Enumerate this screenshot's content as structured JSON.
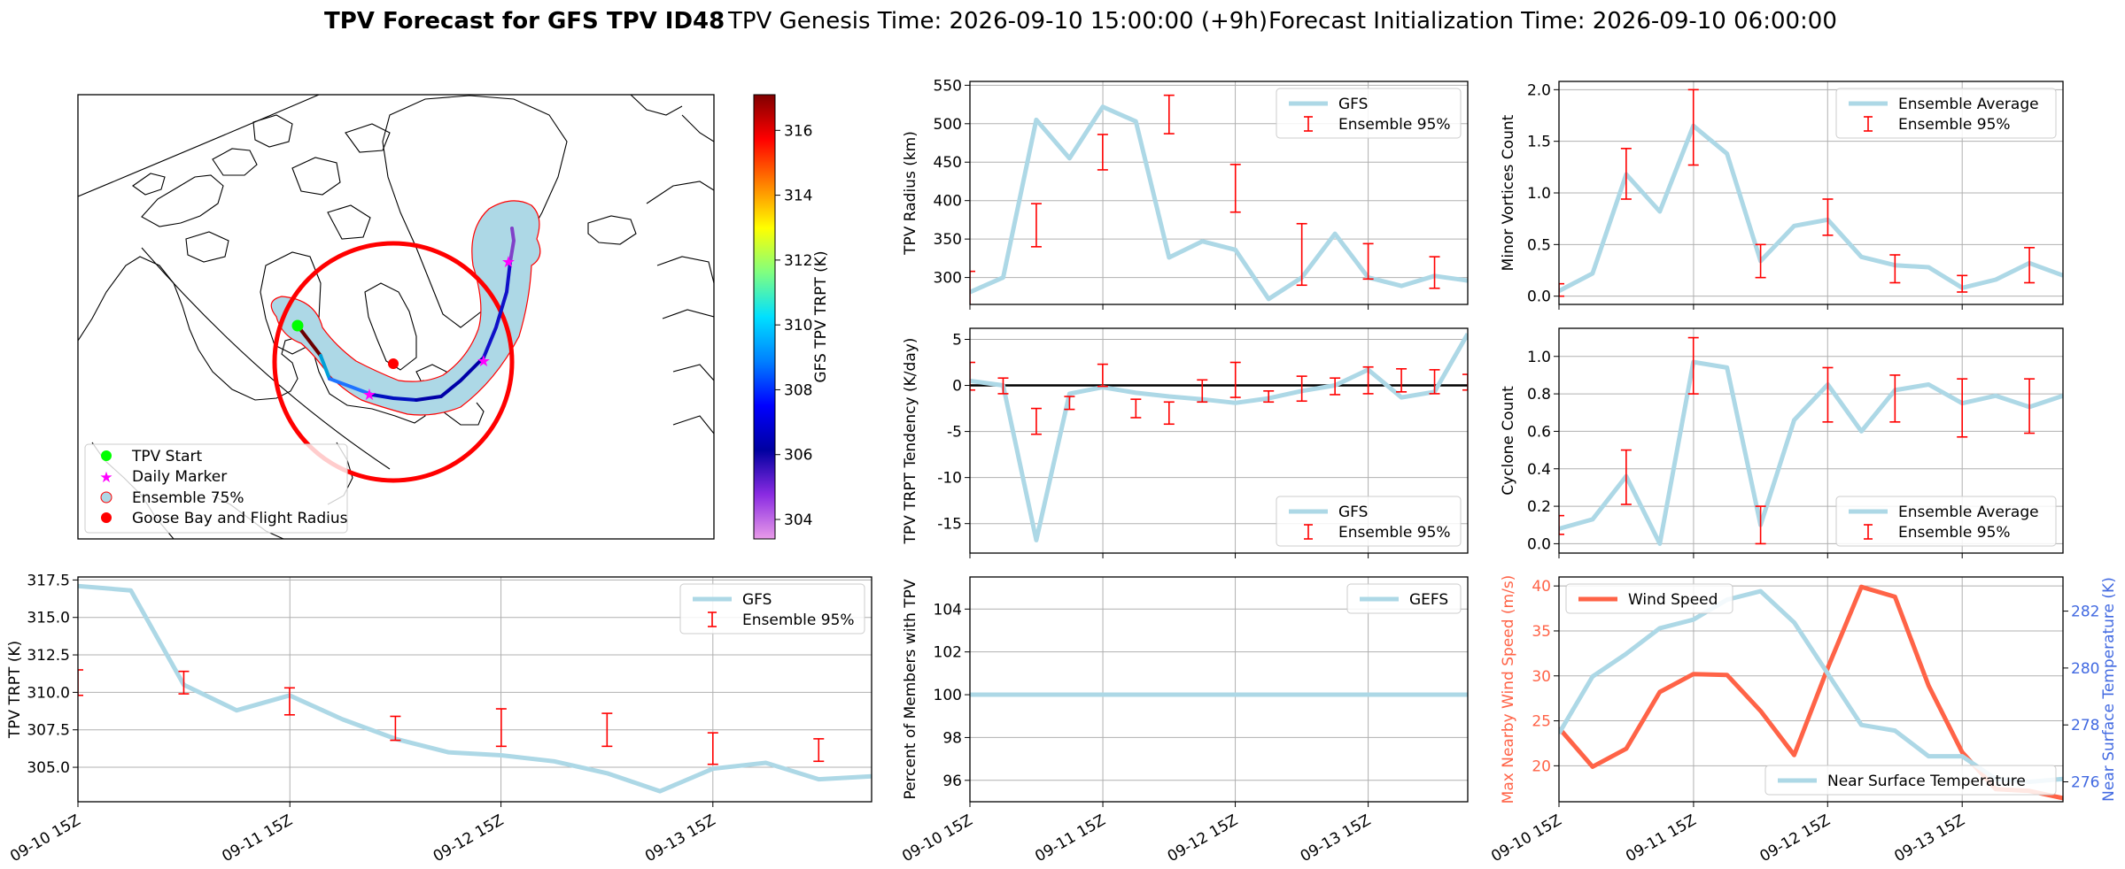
{
  "figure": {
    "title_main": "TPV Forecast for GFS TPV ID48",
    "title_genesis": "TPV Genesis Time: 2026-09-10 15:00:00 (+9h)",
    "title_init": "Forecast Initialization Time: 2026-09-10 06:00:00"
  },
  "colors": {
    "series_line": "#add8e6",
    "errorbar": "#ff0000",
    "wind_line": "#ff6347",
    "temp_axis": "#4169e1",
    "goose_circle": "#ff0000",
    "tpv_start": "#00ff00",
    "daily_marker": "#ff00ff"
  },
  "map": {
    "legend": [
      "TPV Start",
      "Daily Marker",
      "Ensemble 75%",
      "Goose Bay and Flight Radius"
    ],
    "colorbar": {
      "label": "GFS TPV TRPT (K)",
      "min": 303.4,
      "max": 317.1,
      "ticks": [
        304,
        306,
        308,
        310,
        312,
        314,
        316
      ]
    }
  },
  "chart_data": [
    {
      "id": "radius",
      "type": "line",
      "ylabel": "TPV Radius (km)",
      "ylim": [
        265,
        555
      ],
      "yticks": [
        300,
        350,
        400,
        450,
        500,
        550
      ],
      "legend": "top-right",
      "grid": true,
      "series": [
        {
          "name": "GFS",
          "values": [
            281,
            300,
            505,
            455,
            522,
            503,
            326,
            347,
            336,
            272,
            300,
            357,
            300,
            289,
            302,
            296
          ]
        },
        {
          "name": "Ensemble 95%",
          "kind": "errorbar",
          "x": [
            0,
            2,
            4,
            6,
            8,
            10,
            12,
            14
          ],
          "low": [
            260,
            340,
            440,
            487,
            385,
            290,
            298,
            286
          ],
          "high": [
            308,
            396,
            486,
            537,
            447,
            370,
            344,
            327
          ]
        }
      ]
    },
    {
      "id": "minor",
      "type": "line",
      "ylabel": "Minor Vortices Count",
      "ylim": [
        -0.08,
        2.08
      ],
      "yticks": [
        0.0,
        0.5,
        1.0,
        1.5,
        2.0
      ],
      "legend": "top-right",
      "grid": true,
      "series": [
        {
          "name": "Ensemble Average",
          "values": [
            0.05,
            0.22,
            1.18,
            0.82,
            1.65,
            1.38,
            0.34,
            0.68,
            0.74,
            0.38,
            0.3,
            0.28,
            0.08,
            0.16,
            0.32,
            0.2
          ]
        },
        {
          "name": "Ensemble 95%",
          "kind": "errorbar",
          "x": [
            0,
            2,
            4,
            6,
            8,
            10,
            12,
            14
          ],
          "low": [
            0.0,
            0.94,
            1.27,
            0.18,
            0.59,
            0.13,
            0.04,
            0.13
          ],
          "high": [
            0.12,
            1.43,
            2.0,
            0.5,
            0.94,
            0.4,
            0.2,
            0.47
          ]
        }
      ]
    },
    {
      "id": "tendency",
      "type": "line",
      "ylabel": "TPV TRPT Tendency (K/day)",
      "ylim": [
        -18.2,
        6.2
      ],
      "yticks": [
        5,
        0,
        -5,
        -10,
        -15
      ],
      "legend": "bottom-right",
      "grid": true,
      "series": [
        {
          "name": "GFS",
          "values": [
            0.5,
            0.0,
            -16.8,
            -0.9,
            -0.2,
            -0.8,
            -1.2,
            -1.5,
            -1.9,
            -1.4,
            -0.6,
            0.0,
            1.7,
            -1.3,
            -0.7,
            5.6
          ]
        },
        {
          "name": "Ensemble 95%",
          "kind": "errorbar",
          "x": [
            0,
            1,
            2,
            3,
            4,
            5,
            6,
            7,
            8,
            9,
            10,
            11,
            12,
            13,
            14,
            15
          ],
          "low": [
            -0.5,
            -0.9,
            -5.3,
            -2.6,
            -0.1,
            -3.5,
            -4.2,
            -1.8,
            -1.3,
            -1.8,
            -1.7,
            -1.0,
            -0.9,
            -0.7,
            -0.9,
            -0.5
          ],
          "high": [
            2.5,
            0.8,
            -2.5,
            -1.2,
            2.3,
            -1.5,
            -1.8,
            0.6,
            2.5,
            -0.6,
            1.0,
            0.8,
            2.0,
            1.8,
            1.7,
            1.2
          ]
        }
      ]
    },
    {
      "id": "cyclone",
      "type": "line",
      "ylabel": "Cyclone Count",
      "ylim": [
        -0.05,
        1.15
      ],
      "yticks": [
        0.0,
        0.2,
        0.4,
        0.6,
        0.8,
        1.0
      ],
      "legend": "bottom-right",
      "grid": true,
      "series": [
        {
          "name": "Ensemble Average",
          "values": [
            0.08,
            0.13,
            0.36,
            0.0,
            0.97,
            0.94,
            0.1,
            0.66,
            0.85,
            0.6,
            0.82,
            0.85,
            0.75,
            0.79,
            0.73,
            0.79
          ]
        },
        {
          "name": "Ensemble 95%",
          "kind": "errorbar",
          "x": [
            0,
            2,
            4,
            6,
            8,
            10,
            12,
            14
          ],
          "low": [
            0.05,
            0.21,
            0.8,
            0.0,
            0.65,
            0.65,
            0.57,
            0.59
          ],
          "high": [
            0.15,
            0.5,
            1.1,
            0.2,
            0.94,
            0.9,
            0.88,
            0.88
          ]
        }
      ]
    },
    {
      "id": "trpt",
      "type": "line",
      "ylabel": "TPV TRPT (K)",
      "ylim": [
        302.7,
        317.7
      ],
      "yticks": [
        305.0,
        307.5,
        310.0,
        312.5,
        315.0,
        317.5
      ],
      "legend": "top-right",
      "grid": true,
      "series": [
        {
          "name": "GFS",
          "values": [
            317.1,
            316.8,
            310.5,
            308.8,
            309.8,
            308.2,
            306.9,
            306.0,
            305.8,
            305.4,
            304.6,
            303.4,
            304.9,
            305.3,
            304.2,
            304.4
          ]
        },
        {
          "name": "Ensemble 95%",
          "kind": "errorbar",
          "x": [
            0,
            2,
            4,
            6,
            8,
            10,
            12,
            14
          ],
          "low": [
            309.8,
            309.9,
            308.5,
            306.8,
            306.4,
            306.4,
            305.2,
            305.4
          ],
          "high": [
            311.5,
            311.4,
            310.3,
            308.4,
            308.9,
            308.6,
            307.3,
            306.9
          ]
        }
      ]
    },
    {
      "id": "members",
      "type": "line",
      "ylabel": "Percent of Members with TPV",
      "ylim": [
        95.0,
        105.5
      ],
      "yticks": [
        96,
        98,
        100,
        102,
        104
      ],
      "legend": "top-right",
      "grid": true,
      "series": [
        {
          "name": "GEFS",
          "values": [
            100,
            100,
            100,
            100,
            100,
            100,
            100,
            100,
            100,
            100,
            100,
            100,
            100,
            100,
            100,
            100
          ]
        }
      ]
    },
    {
      "id": "wind",
      "type": "line",
      "ylabel": "Max Nearby Wind Speed (m/s)",
      "ylim": [
        16.0,
        41.0
      ],
      "yticks": [
        20,
        25,
        30,
        35,
        40
      ],
      "y2label": "Near Surface Temperature (K)",
      "y2lim": [
        275.3,
        283.2
      ],
      "y2ticks": [
        276,
        278,
        280,
        282
      ],
      "legend": "top-left",
      "grid": true,
      "series": [
        {
          "name": "Wind Speed",
          "axis": "left",
          "values": [
            24.2,
            19.9,
            21.9,
            28.2,
            30.2,
            30.1,
            26.1,
            21.2,
            30.9,
            39.9,
            38.8,
            28.9,
            21.5,
            17.4,
            17.2,
            16.4
          ]
        },
        {
          "name": "Near Surface Temperature",
          "axis": "right",
          "values": [
            277.7,
            279.7,
            280.5,
            281.4,
            281.7,
            282.4,
            282.7,
            281.6,
            279.8,
            278.0,
            277.8,
            276.9,
            276.9,
            276.1,
            276.0,
            276.1
          ]
        }
      ]
    }
  ],
  "xaxis": {
    "ticks": [
      "09-10 15Z",
      "09-11 15Z",
      "09-12 15Z",
      "09-13 15Z"
    ]
  }
}
